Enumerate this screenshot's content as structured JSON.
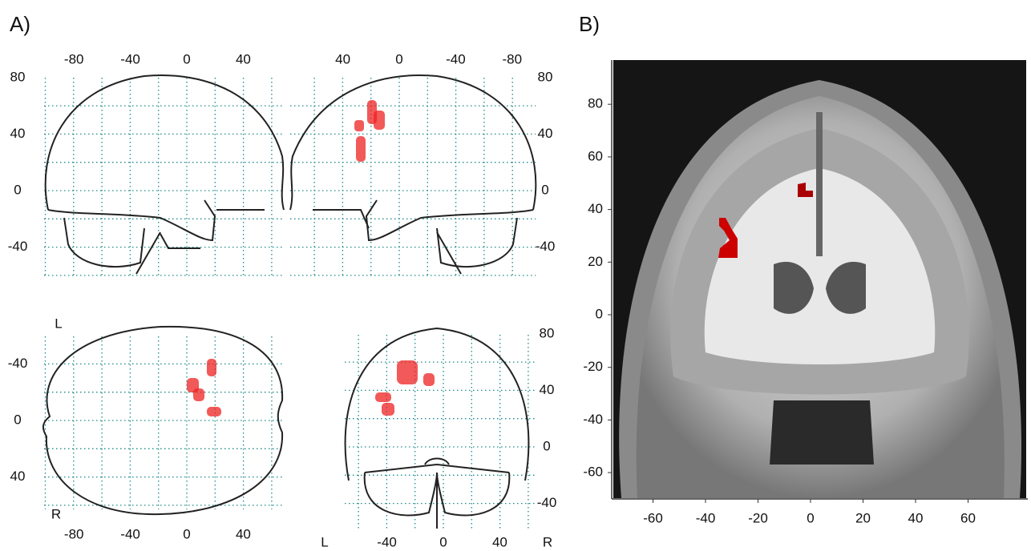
{
  "panel_a": {
    "label": "A)",
    "sagittal_left": {
      "x_ticks": [
        -80,
        -40,
        0,
        40
      ],
      "y_ticks": [
        80,
        40,
        0,
        -40
      ]
    },
    "sagittal_right": {
      "x_ticks": [
        40,
        0,
        -40,
        -80
      ],
      "y_ticks": [
        80,
        40,
        0,
        -40
      ]
    },
    "axial": {
      "x_ticks": [
        -80,
        -40,
        0,
        40
      ],
      "y_ticks": [
        -40,
        0,
        40
      ],
      "top_label": "L",
      "bottom_label": "R"
    },
    "coronal": {
      "x_ticks": [
        -40,
        0,
        40
      ],
      "y_ticks": [
        80,
        40,
        0,
        -40
      ],
      "left_label": "L",
      "right_label": "R"
    }
  },
  "panel_b": {
    "label": "B)",
    "x_ticks": [
      -60,
      -40,
      -20,
      0,
      20,
      40,
      60
    ],
    "y_ticks": [
      80,
      60,
      40,
      20,
      0,
      -20,
      -40,
      -60
    ]
  }
}
